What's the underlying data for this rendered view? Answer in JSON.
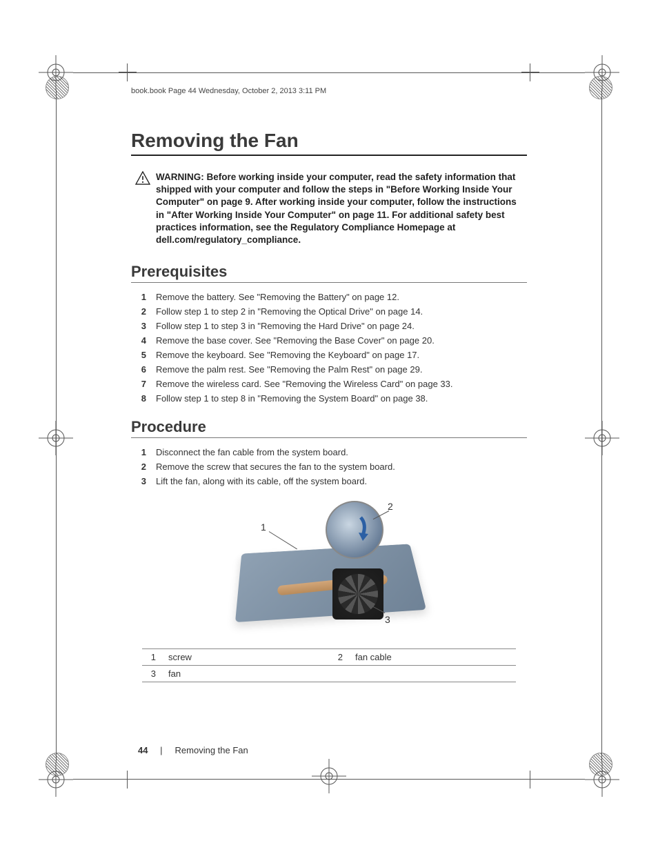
{
  "header": "book.book  Page 44  Wednesday, October 2, 2013  3:11 PM",
  "title": "Removing the Fan",
  "warning": "WARNING:  Before working inside your computer, read the safety information that shipped with your computer and follow the steps in \"Before Working Inside Your Computer\" on page 9. After working inside your computer, follow the instructions in \"After Working Inside Your Computer\" on page 11. For additional safety best practices information, see the Regulatory Compliance Homepage at dell.com/regulatory_compliance.",
  "sections": {
    "prereq_title": "Prerequisites",
    "prereq_steps": [
      "Remove the battery. See \"Removing the Battery\" on page 12.",
      "Follow step 1 to step 2 in \"Removing the Optical Drive\" on page 14.",
      "Follow step 1 to step 3 in \"Removing the Hard Drive\" on page 24.",
      "Remove the base cover. See \"Removing the Base Cover\" on page 20.",
      "Remove the keyboard. See \"Removing the Keyboard\" on page 17.",
      "Remove the palm rest. See \"Removing the Palm Rest\" on page 29.",
      "Remove the wireless card. See \"Removing the Wireless Card\" on page 33.",
      "Follow step 1 to step 8 in \"Removing the System Board\" on page 38."
    ],
    "proc_title": "Procedure",
    "proc_steps": [
      "Disconnect the fan cable from the system board.",
      "Remove the screw that secures the fan to the system board.",
      "Lift the fan, along with its cable, off the system board."
    ]
  },
  "diagram": {
    "callouts": {
      "c1": "1",
      "c2": "2",
      "c3": "3"
    },
    "legend": [
      {
        "num": "1",
        "label": "screw"
      },
      {
        "num": "2",
        "label": "fan cable"
      },
      {
        "num": "3",
        "label": "fan"
      }
    ]
  },
  "footer": {
    "page_num": "44",
    "divider": "|",
    "section": "Removing the Fan"
  }
}
